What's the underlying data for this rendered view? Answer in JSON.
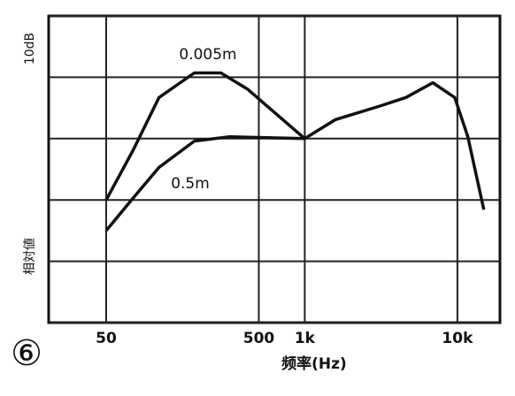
{
  "chart_data": {
    "type": "line",
    "x_label": "频率(Hz)",
    "y_label": "相対値",
    "y_scale_label": "10dB",
    "figure_number": "⑥",
    "log_x": true,
    "grid": true,
    "xlim": [
      21,
      19000
    ],
    "xticks": [
      {
        "value": 50,
        "label": "50"
      },
      {
        "value": 500,
        "label": "500"
      },
      {
        "value": 1000,
        "label": "1k"
      },
      {
        "value": 10000,
        "label": "10k"
      }
    ],
    "ylim": [
      -30,
      20
    ],
    "yticks": [
      -30,
      -20,
      -10,
      0,
      10,
      20
    ],
    "series": [
      {
        "name": "0.005m",
        "color": "#111111",
        "x": [
          50,
          75,
          111,
          189,
          282,
          420,
          1000,
          1590,
          3100,
          4600,
          6900,
          9600,
          11700,
          14900
        ],
        "values": [
          -10,
          -1.9,
          6.7,
          10.7,
          10.7,
          8.1,
          0,
          3.1,
          5.3,
          6.7,
          9.1,
          6.7,
          0.3,
          -11.6
        ]
      },
      {
        "name": "0.5m",
        "color": "#111111",
        "x": [
          50,
          75,
          111,
          189,
          322,
          1000
        ],
        "values": [
          -15,
          -9.7,
          -4.7,
          -0.4,
          0.3,
          0
        ]
      }
    ]
  }
}
